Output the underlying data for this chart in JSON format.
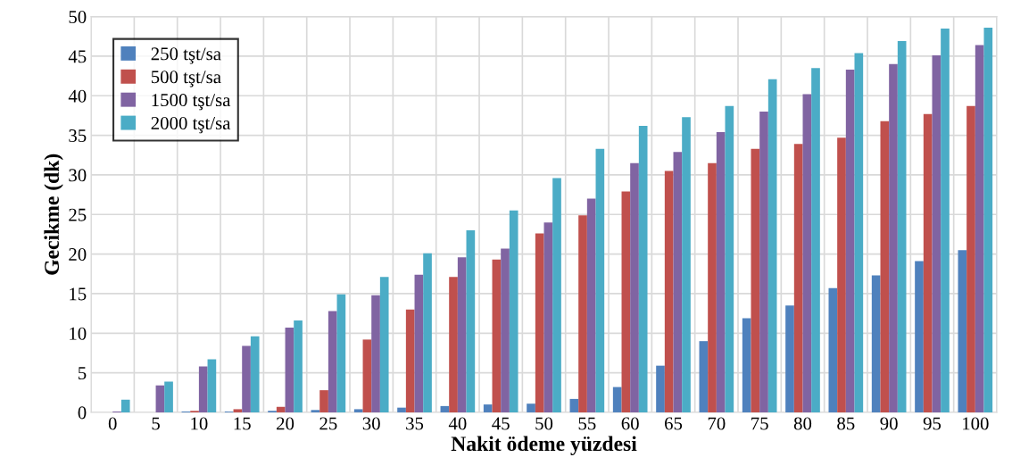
{
  "chart_data": {
    "type": "bar",
    "xlabel": "Nakit ödeme yüzdesi",
    "ylabel": "Gecikme (dk)",
    "categories": [
      "0",
      "5",
      "10",
      "15",
      "20",
      "25",
      "30",
      "35",
      "40",
      "45",
      "50",
      "55",
      "60",
      "65",
      "70",
      "75",
      "80",
      "85",
      "90",
      "95",
      "100"
    ],
    "series": [
      {
        "name": "250 tşt/sa",
        "color": "#4f81bd",
        "values": [
          0,
          0,
          0.1,
          0.1,
          0.2,
          0.3,
          0.4,
          0.6,
          0.8,
          1.0,
          1.1,
          1.7,
          3.2,
          5.9,
          9.0,
          11.9,
          13.5,
          15.7,
          17.3,
          19.1,
          20.5
        ]
      },
      {
        "name": "500 tşt/sa",
        "color": "#c0504d",
        "values": [
          0,
          0,
          0.2,
          0.4,
          0.7,
          2.8,
          9.2,
          13.0,
          17.1,
          19.3,
          22.6,
          24.9,
          27.9,
          30.5,
          31.5,
          33.3,
          33.9,
          34.7,
          36.8,
          37.7,
          38.7
        ]
      },
      {
        "name": "1500 tşt/sa",
        "color": "#8064a2",
        "values": [
          0.1,
          3.4,
          5.8,
          8.4,
          10.7,
          12.8,
          14.8,
          17.4,
          19.6,
          20.7,
          24.0,
          27.0,
          31.5,
          32.9,
          35.4,
          38.0,
          40.2,
          43.3,
          44.0,
          45.1,
          46.4
        ]
      },
      {
        "name": "2000 tşt/sa",
        "color": "#4bacc6",
        "values": [
          1.6,
          3.9,
          6.7,
          9.6,
          11.6,
          14.9,
          17.1,
          20.1,
          23.0,
          25.5,
          29.6,
          33.3,
          36.2,
          37.3,
          38.7,
          42.1,
          43.5,
          45.4,
          46.9,
          48.5,
          48.6
        ]
      }
    ],
    "ylim": [
      0,
      50
    ],
    "yticks": [
      0,
      5,
      10,
      15,
      20,
      25,
      30,
      35,
      40,
      45,
      50
    ],
    "grid": true,
    "legend": "top left"
  }
}
